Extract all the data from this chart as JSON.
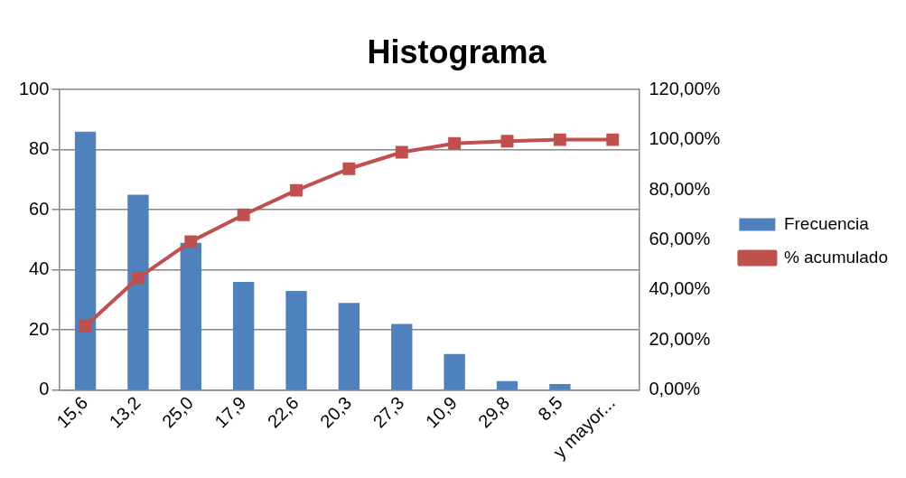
{
  "chart_data": {
    "type": "bar",
    "title": "Histograma",
    "categories": [
      "15,6",
      "13,2",
      "25,0",
      "17,9",
      "22,6",
      "20,3",
      "27,3",
      "10,9",
      "29,8",
      "8,5",
      "y mayor..."
    ],
    "series": [
      {
        "name": "Frecuencia",
        "color": "#4f81bd",
        "values": [
          86,
          65,
          49,
          36,
          33,
          29,
          22,
          12,
          3,
          2,
          0
        ]
      },
      {
        "name": "% acumulado",
        "type": "line",
        "axis": "y2",
        "color": "#c0504d",
        "marker": "square",
        "line_style": "solid",
        "values": [
          25.5,
          44.8,
          59.3,
          70.0,
          79.8,
          88.4,
          95.0,
          98.5,
          99.4,
          100,
          100
        ]
      }
    ],
    "ylim": [
      0,
      100
    ],
    "yticks": [
      0,
      20,
      40,
      60,
      80,
      100
    ],
    "y2lim": [
      0,
      120
    ],
    "y2ticks": [
      {
        "value": 0,
        "label": "0,00%"
      },
      {
        "value": 20,
        "label": "20,00%"
      },
      {
        "value": 40,
        "label": "40,00%"
      },
      {
        "value": 60,
        "label": "60,00%"
      },
      {
        "value": 80,
        "label": "80,00%"
      },
      {
        "value": 100,
        "label": "100,00%"
      },
      {
        "value": 120,
        "label": "120,00%"
      }
    ],
    "grid": "y",
    "legend": "right"
  }
}
